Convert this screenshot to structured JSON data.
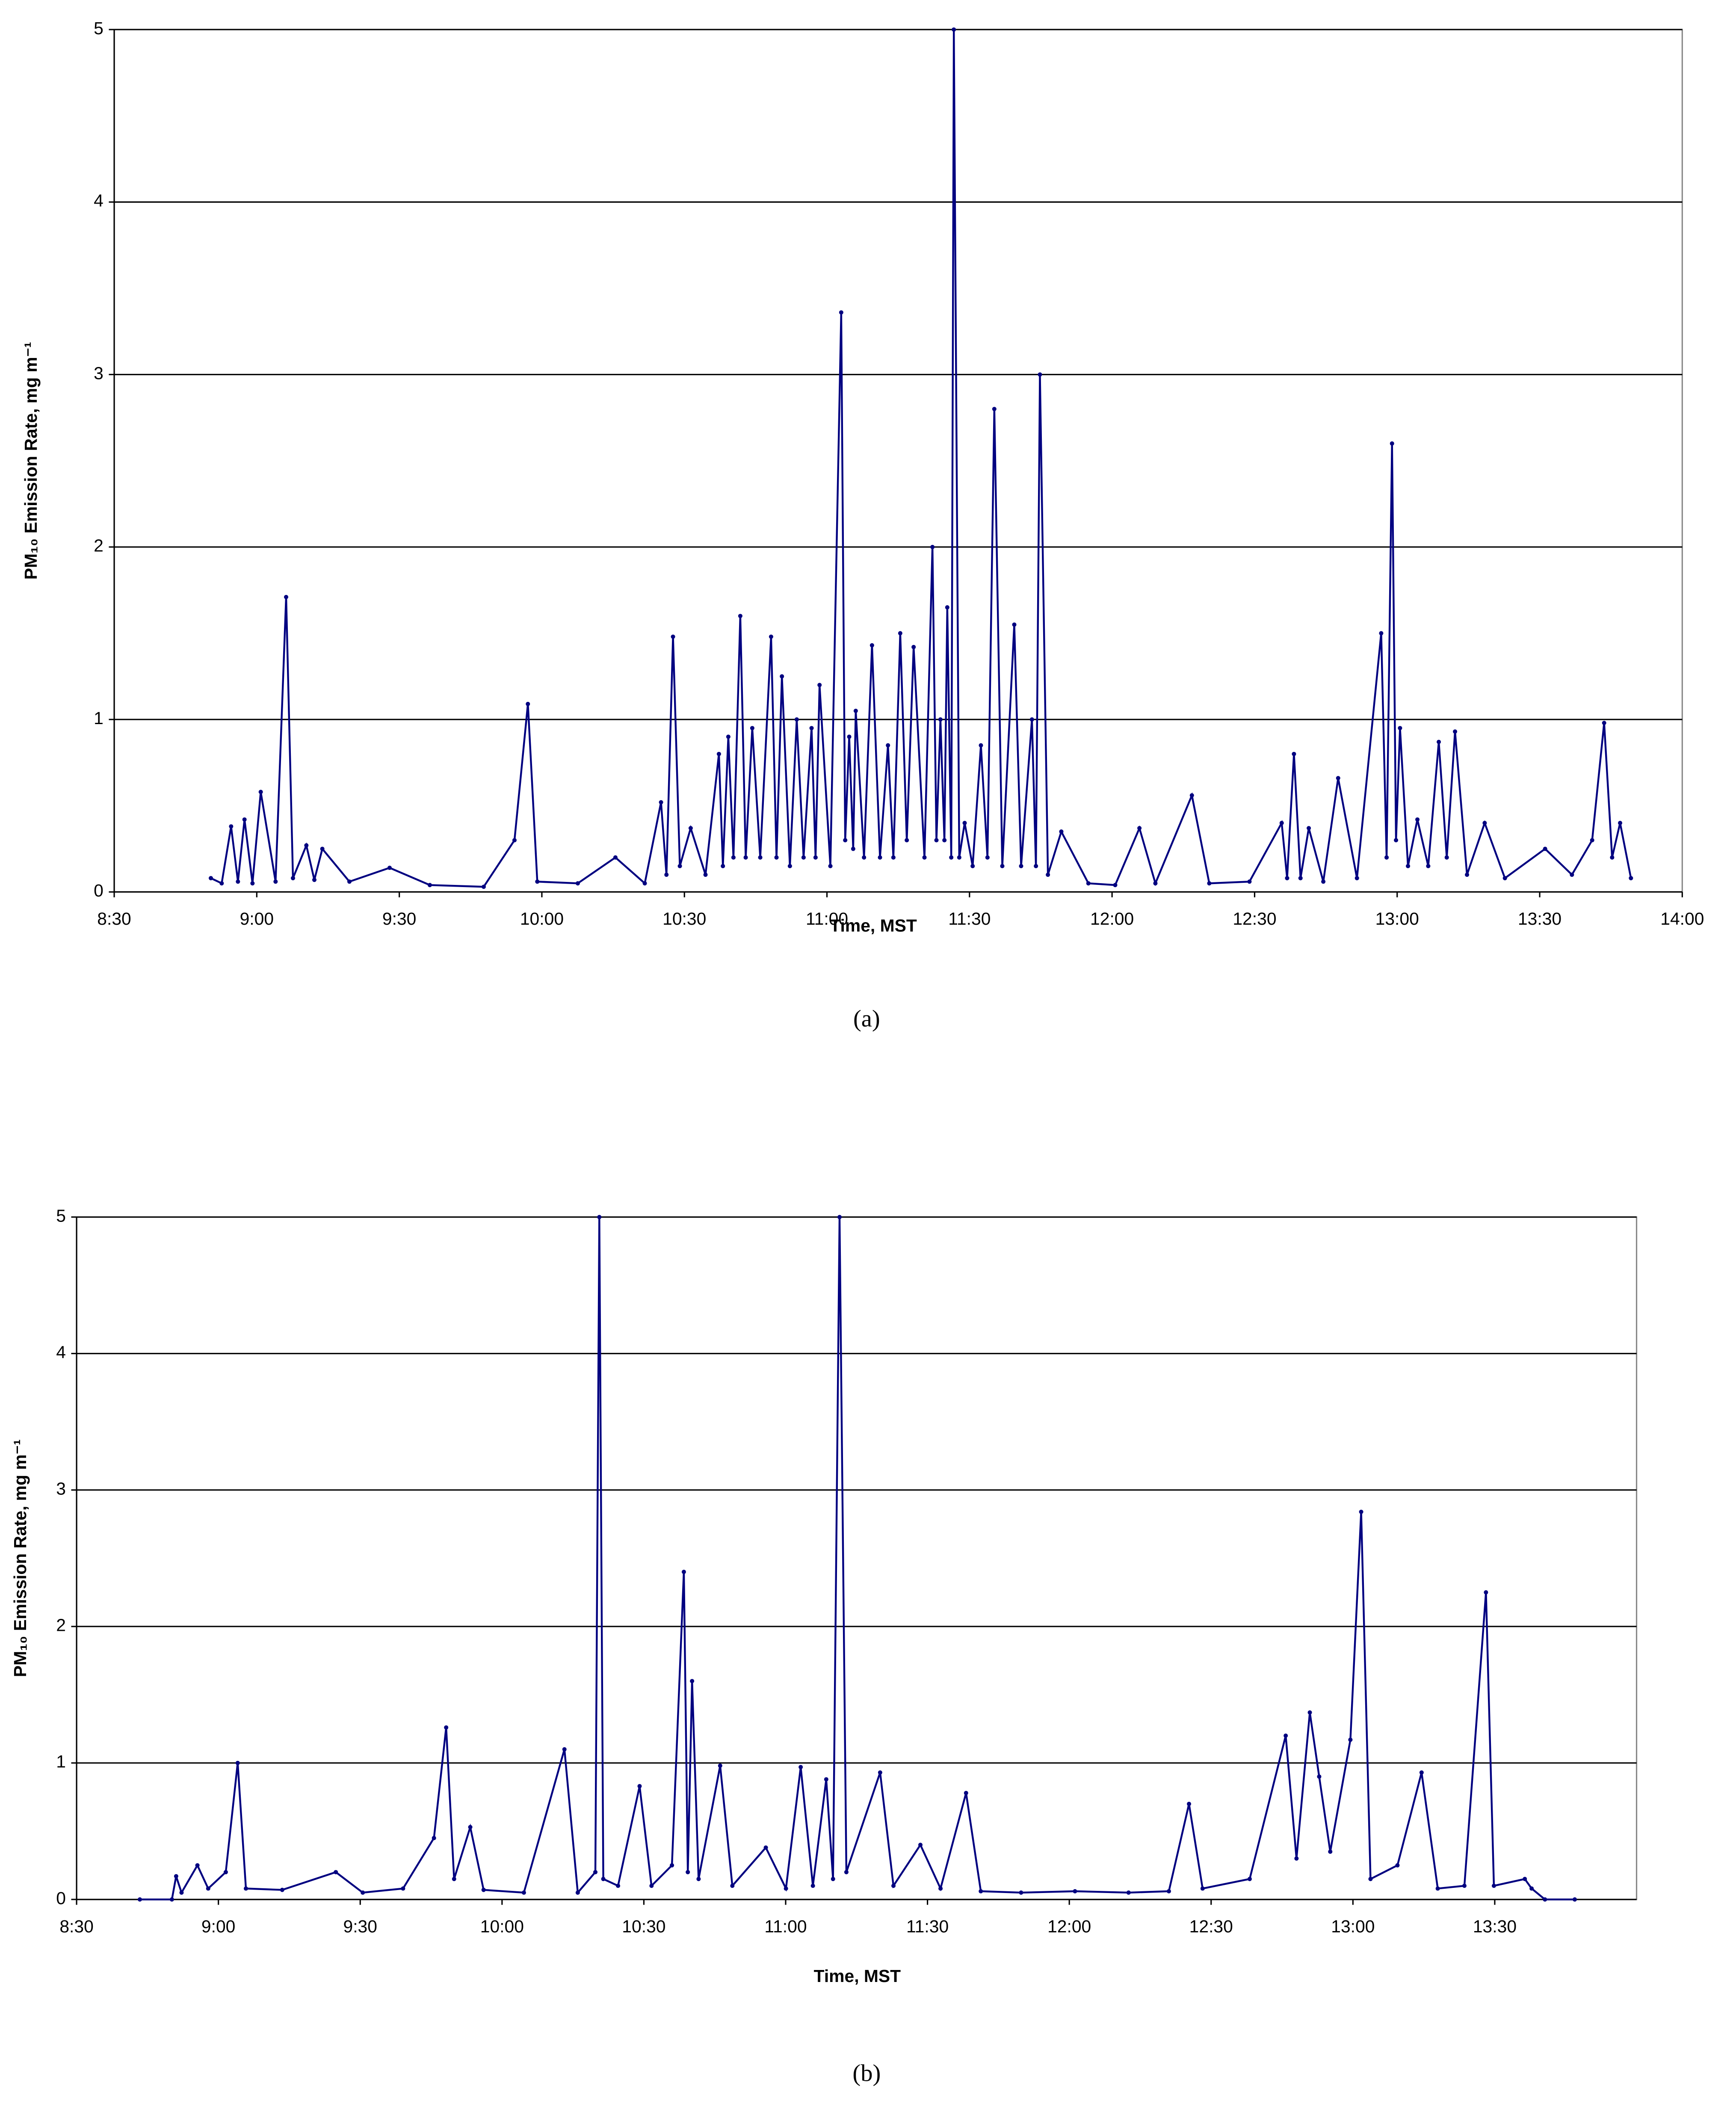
{
  "chart_data": [
    {
      "type": "line",
      "caption": "(a)",
      "x_label": "Time, MST",
      "y_label": "PM₁₀ Emission Rate, mg m⁻¹",
      "color": "#000080",
      "grid": true,
      "xlim": [
        8.5,
        14
      ],
      "ylim": [
        0,
        5
      ],
      "xticks": [
        {
          "value": 8.5,
          "label": "8:30"
        },
        {
          "value": 9,
          "label": "9:00"
        },
        {
          "value": 9.5,
          "label": "9:30"
        },
        {
          "value": 10,
          "label": "10:00"
        },
        {
          "value": 10.5,
          "label": "10:30"
        },
        {
          "value": 11,
          "label": "11:00"
        },
        {
          "value": 11.5,
          "label": "11:30"
        },
        {
          "value": 12,
          "label": "12:00"
        },
        {
          "value": 12.5,
          "label": "12:30"
        },
        {
          "value": 13,
          "label": "13:00"
        },
        {
          "value": 13.5,
          "label": "13:30"
        },
        {
          "value": 14,
          "label": "14:00"
        }
      ],
      "yticks": [
        0,
        1,
        2,
        3,
        4,
        5
      ],
      "x": [
        8.839,
        8.877,
        8.91,
        8.934,
        8.957,
        8.985,
        9.014,
        9.066,
        9.103,
        9.127,
        9.174,
        9.202,
        9.23,
        9.325,
        9.466,
        9.607,
        9.796,
        9.904,
        9.951,
        9.984,
        10.126,
        10.258,
        10.361,
        10.418,
        10.437,
        10.46,
        10.484,
        10.522,
        10.574,
        10.621,
        10.635,
        10.654,
        10.672,
        10.696,
        10.715,
        10.738,
        10.766,
        10.804,
        10.823,
        10.842,
        10.87,
        10.894,
        10.918,
        10.946,
        10.96,
        10.974,
        11.012,
        11.05,
        11.064,
        11.078,
        11.092,
        11.101,
        11.13,
        11.158,
        11.186,
        11.214,
        11.233,
        11.257,
        11.28,
        11.304,
        11.342,
        11.37,
        11.384,
        11.398,
        11.412,
        11.422,
        11.436,
        11.445,
        11.464,
        11.483,
        11.511,
        11.54,
        11.563,
        11.587,
        11.615,
        11.657,
        11.681,
        11.719,
        11.733,
        11.747,
        11.775,
        11.822,
        11.917,
        12.011,
        12.096,
        12.152,
        12.28,
        12.341,
        12.482,
        12.595,
        12.614,
        12.638,
        12.661,
        12.69,
        12.741,
        12.793,
        12.859,
        12.944,
        12.963,
        12.982,
        12.996,
        13.01,
        13.038,
        13.071,
        13.109,
        13.146,
        13.174,
        13.203,
        13.245,
        13.307,
        13.378,
        13.519,
        13.613,
        13.684,
        13.726,
        13.754,
        13.782,
        13.82
      ],
      "values": [
        0.08,
        0.05,
        0.38,
        0.06,
        0.42,
        0.05,
        0.58,
        0.06,
        1.71,
        0.08,
        0.27,
        0.07,
        0.25,
        0.06,
        0.14,
        0.04,
        0.03,
        0.3,
        1.09,
        0.06,
        0.05,
        0.2,
        0.05,
        0.52,
        0.1,
        1.48,
        0.15,
        0.37,
        0.1,
        0.8,
        0.15,
        0.9,
        0.2,
        1.6,
        0.2,
        0.95,
        0.2,
        1.48,
        0.2,
        1.25,
        0.15,
        1.0,
        0.2,
        0.95,
        0.2,
        1.2,
        0.15,
        3.36,
        0.3,
        0.9,
        0.25,
        1.05,
        0.2,
        1.43,
        0.2,
        0.85,
        0.2,
        1.5,
        0.3,
        1.42,
        0.2,
        2.0,
        0.3,
        1.0,
        0.3,
        1.65,
        0.2,
        5.0,
        0.2,
        0.4,
        0.15,
        0.85,
        0.2,
        2.8,
        0.15,
        1.55,
        0.15,
        1.0,
        0.15,
        3.0,
        0.1,
        0.35,
        0.05,
        0.04,
        0.37,
        0.05,
        0.56,
        0.05,
        0.06,
        0.4,
        0.08,
        0.8,
        0.08,
        0.37,
        0.06,
        0.66,
        0.08,
        1.5,
        0.2,
        2.6,
        0.3,
        0.95,
        0.15,
        0.42,
        0.15,
        0.87,
        0.2,
        0.93,
        0.1,
        0.4,
        0.08,
        0.25,
        0.1,
        0.3,
        0.98,
        0.2,
        0.4,
        0.08
      ]
    },
    {
      "type": "line",
      "caption": "(b)",
      "x_label": "Time, MST",
      "y_label": "PM₁₀ Emission Rate, mg m⁻¹",
      "color": "#000080",
      "grid": true,
      "xlim": [
        8.5,
        14
      ],
      "ylim": [
        0,
        5
      ],
      "xticks": [
        {
          "value": 8.5,
          "label": "8:30"
        },
        {
          "value": 9,
          "label": "9:00"
        },
        {
          "value": 9.5,
          "label": "9:30"
        },
        {
          "value": 10,
          "label": "10:00"
        },
        {
          "value": 10.5,
          "label": "10:30"
        },
        {
          "value": 11,
          "label": "11:00"
        },
        {
          "value": 11.5,
          "label": "11:30"
        },
        {
          "value": 12,
          "label": "12:00"
        },
        {
          "value": 12.5,
          "label": "12:30"
        },
        {
          "value": 13,
          "label": "13:00"
        },
        {
          "value": 13.5,
          "label": "13:30"
        }
      ],
      "yticks": [
        0,
        1,
        2,
        3,
        4,
        5
      ],
      "x": [
        8.723,
        8.836,
        8.851,
        8.87,
        8.926,
        8.964,
        9.026,
        9.068,
        9.097,
        9.225,
        9.414,
        9.509,
        9.651,
        9.76,
        9.803,
        9.831,
        9.888,
        9.935,
        10.077,
        10.22,
        10.267,
        10.329,
        10.343,
        10.357,
        10.409,
        10.485,
        10.527,
        10.599,
        10.641,
        10.655,
        10.67,
        10.693,
        10.769,
        10.812,
        10.93,
        11.001,
        11.053,
        11.096,
        11.143,
        11.167,
        11.19,
        11.214,
        11.333,
        11.38,
        11.475,
        11.546,
        11.636,
        11.688,
        11.83,
        12.02,
        12.209,
        12.351,
        12.422,
        12.47,
        12.636,
        12.763,
        12.801,
        12.848,
        12.881,
        12.92,
        12.991,
        13.029,
        13.062,
        13.157,
        13.242,
        13.299,
        13.393,
        13.469,
        13.497,
        13.606,
        13.63,
        13.677,
        13.782
      ],
      "values": [
        0,
        0,
        0.17,
        0.05,
        0.25,
        0.08,
        0.2,
        1.0,
        0.08,
        0.07,
        0.2,
        0.05,
        0.08,
        0.45,
        1.26,
        0.15,
        0.53,
        0.07,
        0.05,
        1.1,
        0.05,
        0.2,
        5.0,
        0.15,
        0.1,
        0.83,
        0.1,
        0.25,
        2.4,
        0.2,
        1.6,
        0.15,
        0.98,
        0.1,
        0.38,
        0.08,
        0.97,
        0.1,
        0.88,
        0.15,
        5.0,
        0.2,
        0.93,
        0.1,
        0.4,
        0.08,
        0.78,
        0.06,
        0.05,
        0.06,
        0.05,
        0.06,
        0.7,
        0.08,
        0.15,
        1.2,
        0.3,
        1.37,
        0.9,
        0.35,
        1.17,
        2.84,
        0.15,
        0.25,
        0.93,
        0.08,
        0.1,
        2.25,
        0.1,
        0.15,
        0.08,
        0,
        0
      ]
    }
  ]
}
